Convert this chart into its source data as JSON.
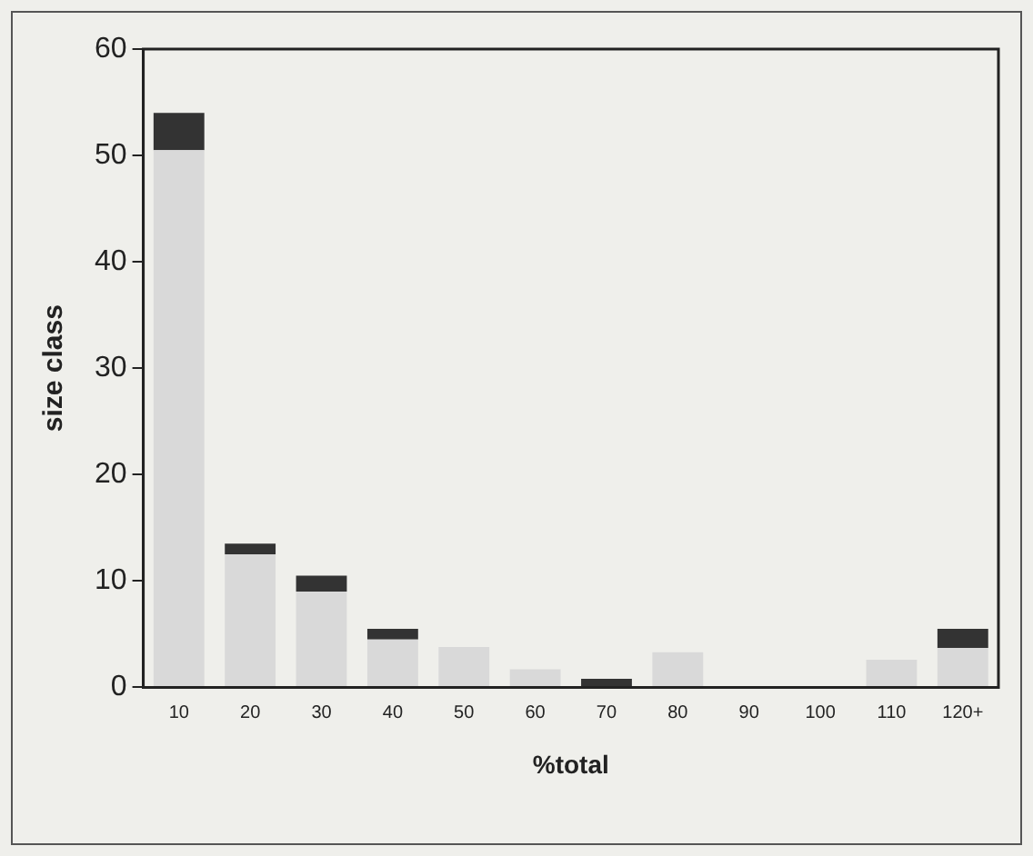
{
  "chart_data": {
    "type": "bar",
    "stacked": true,
    "xlabel": "%total",
    "ylabel": "size class",
    "categories": [
      "10",
      "20",
      "30",
      "40",
      "50",
      "60",
      "70",
      "80",
      "90",
      "100",
      "110",
      "120+"
    ],
    "series": [
      {
        "color": "#d9d9d9",
        "values": [
          50.5,
          12.5,
          9,
          4.5,
          3.8,
          1.7,
          0,
          3.3,
          0,
          0,
          2.6,
          3.7
        ]
      },
      {
        "color": "#333333",
        "values": [
          3.5,
          1,
          1.5,
          1,
          0,
          0,
          0.8,
          0,
          0,
          0,
          0,
          1.8
        ]
      }
    ],
    "ylim": [
      0,
      60
    ],
    "yticks": [
      0,
      10,
      20,
      30,
      40,
      50,
      60
    ],
    "grid": false,
    "legend": false
  }
}
